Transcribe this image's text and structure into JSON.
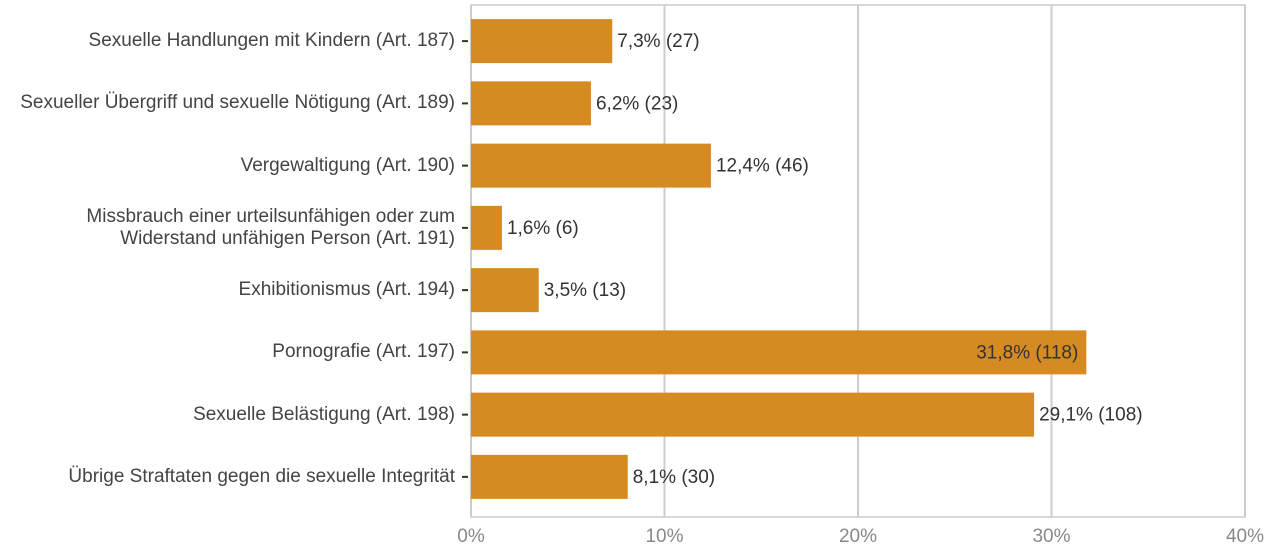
{
  "chart_data": {
    "type": "bar",
    "orientation": "horizontal",
    "categories": [
      "Sexuelle Handlungen mit Kindern (Art. 187)",
      "Sexueller Übergriff und sexuelle Nötigung (Art. 189)",
      "Vergewaltigung (Art. 190)",
      "Missbrauch einer urteilsunfähigen oder zum Widerstand unfähigen Person (Art. 191)",
      "Exhibitionismus (Art. 194)",
      "Pornografie (Art. 197)",
      "Sexuelle Belästigung (Art. 198)",
      "Übrige Straftaten gegen die sexuelle Integrität"
    ],
    "values": [
      7.3,
      6.2,
      12.4,
      1.6,
      3.5,
      31.8,
      29.1,
      8.1
    ],
    "value_labels": [
      "7,3% (27)",
      "6,2% (23)",
      "12,4% (46)",
      "1,6% (6)",
      "3,5% (13)",
      "31,8% (118)",
      "29,1% (108)",
      "8,1% (30)"
    ],
    "color": "#d68a24",
    "xlim": [
      0,
      40
    ],
    "xticks": [
      {
        "value": 0,
        "label": "0%"
      },
      {
        "value": 10,
        "label": "10%"
      },
      {
        "value": 20,
        "label": "20%"
      },
      {
        "value": 30,
        "label": "30%"
      },
      {
        "value": 40,
        "label": "40%"
      }
    ],
    "grid": true
  }
}
